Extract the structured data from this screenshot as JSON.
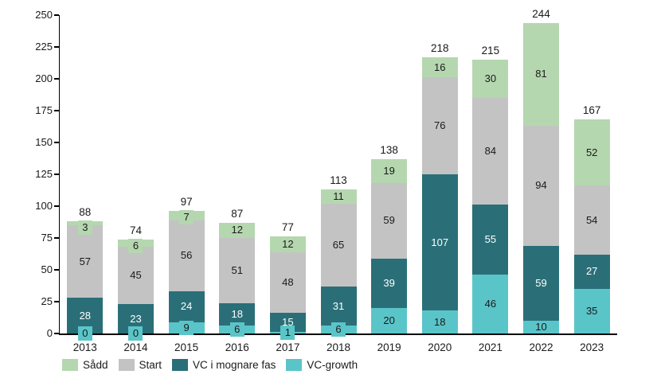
{
  "chart_data": {
    "type": "bar",
    "stacked": true,
    "title": "",
    "xlabel": "",
    "ylabel": "",
    "categories": [
      "2013",
      "2014",
      "2015",
      "2016",
      "2017",
      "2018",
      "2019",
      "2020",
      "2021",
      "2022",
      "2023"
    ],
    "series": [
      {
        "name": "Sådd",
        "color": "#b5d7af",
        "label_color": "#1a1a1a",
        "values": [
          3,
          6,
          7,
          12,
          12,
          11,
          19,
          16,
          30,
          81,
          52
        ]
      },
      {
        "name": "Start",
        "color": "#c3c3c3",
        "label_color": "#1a1a1a",
        "values": [
          57,
          45,
          56,
          51,
          48,
          65,
          59,
          76,
          84,
          94,
          54
        ]
      },
      {
        "name": "VC i mognare fas",
        "color": "#2a6f78",
        "label_color": "#ffffff",
        "values": [
          28,
          23,
          24,
          18,
          15,
          31,
          39,
          107,
          55,
          59,
          27
        ]
      },
      {
        "name": "VC-growth",
        "color": "#5ac5c9",
        "label_color": "#1a1a1a",
        "values": [
          0,
          0,
          9,
          6,
          1,
          6,
          20,
          18,
          46,
          10,
          35
        ]
      }
    ],
    "stack_order_bottom_to_top": [
      "VC-growth",
      "VC i mognare fas",
      "Start",
      "Sådd"
    ],
    "totals": [
      88,
      74,
      97,
      87,
      77,
      113,
      138,
      218,
      215,
      244,
      167
    ],
    "y_ticks": [
      "0",
      "25",
      "50",
      "75",
      "100",
      "125",
      "150",
      "175",
      "200",
      "225",
      "250"
    ],
    "ylim": [
      0,
      250
    ],
    "grid": false,
    "legend_position": "bottom-left",
    "legend": [
      "Sådd",
      "Start",
      "VC i mognare fas",
      "VC-growth"
    ],
    "axis_color": "#000000",
    "text_color": "#1a1a1a",
    "background_color": "#ffffff"
  }
}
